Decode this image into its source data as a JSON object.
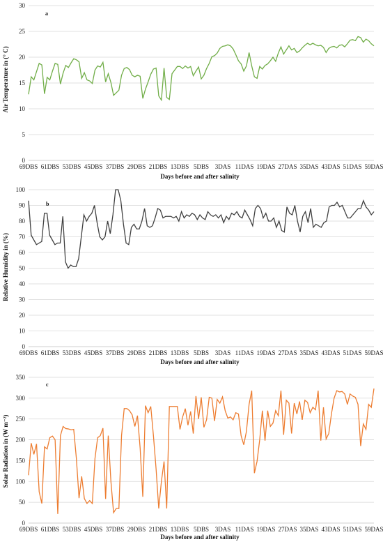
{
  "chart_data": [
    {
      "type": "line",
      "panel_label": "a",
      "ylabel": "Air Temperature in (° C)",
      "xlabel": "Days before and after salinity",
      "ylim": [
        0,
        30
      ],
      "yticks": [
        0,
        5,
        10,
        15,
        20,
        25,
        30
      ],
      "x_tick_labels": [
        "69DBS",
        "61DBS",
        "53DBS",
        "45DBS",
        "37DBS",
        "29DBS",
        "21DBS",
        "13DBS",
        "5DBS",
        "3DAS",
        "11DAS",
        "19DAS",
        "27DAS",
        "35DAS",
        "43DAS",
        "51DAS",
        "59DAS"
      ],
      "grid": true,
      "color": "#70ad47",
      "series": [
        {
          "values": [
            12.8,
            16.2,
            15.6,
            17.2,
            18.8,
            18.5,
            12.9,
            16.1,
            15.6,
            17.3,
            18.8,
            18.6,
            14.8,
            16.9,
            18.4,
            18.0,
            18.9,
            19.7,
            19.5,
            19.1,
            15.9,
            17.0,
            15.6,
            15.4,
            14.9,
            17.5,
            18.3,
            18.1,
            19.0,
            15.2,
            16.8,
            15.1,
            12.6,
            13.1,
            13.6,
            16.5,
            17.8,
            18.0,
            17.6,
            16.5,
            16.2,
            16.5,
            16.3,
            12.0,
            13.8,
            15.2,
            16.7,
            17.7,
            17.9,
            12.5,
            11.7,
            17.9,
            12.2,
            11.8,
            16.8,
            17.5,
            18.2,
            18.2,
            17.8,
            18.3,
            17.9,
            18.2,
            16.4,
            17.3,
            18.1,
            15.8,
            16.5,
            17.8,
            18.8,
            20.1,
            20.3,
            20.8,
            21.7,
            22.1,
            22.2,
            22.4,
            22.2,
            21.6,
            20.5,
            19.3,
            18.7,
            17.3,
            18.3,
            20.9,
            18.3,
            16.2,
            15.9,
            18.2,
            17.7,
            18.4,
            18.7,
            19.3,
            20.0,
            19.2,
            20.8,
            22.0,
            20.6,
            21.4,
            22.2,
            21.4,
            21.7,
            20.9,
            21.2,
            21.8,
            22.3,
            22.7,
            22.4,
            22.7,
            22.4,
            22.2,
            22.3,
            21.9,
            20.9,
            21.7,
            22.0,
            22.1,
            21.8,
            22.3,
            22.4,
            22.0,
            22.6,
            23.3,
            23.4,
            23.2,
            24.0,
            23.8,
            22.9,
            23.5,
            23.2,
            22.6,
            22.2
          ]
        }
      ]
    },
    {
      "type": "line",
      "panel_label": "b",
      "ylabel": "Relative Humidity in (%)",
      "xlabel": "Days before and after salinity",
      "ylim": [
        0,
        100
      ],
      "yticks": [
        0,
        10,
        20,
        30,
        40,
        50,
        60,
        70,
        80,
        90,
        100
      ],
      "x_tick_labels": [
        "69DBS",
        "61DBS",
        "53DBS",
        "45DBS",
        "37DBS",
        "29DBS",
        "21DBS",
        "13DBS",
        "5DBS",
        "3DAS",
        "11DAS",
        "19DAS",
        "27DAS",
        "35DAS",
        "43DAS",
        "51DAS",
        "59DAS"
      ],
      "grid": true,
      "color": "#404040",
      "series": [
        {
          "values": [
            93,
            71,
            68,
            65,
            66,
            67,
            85,
            85,
            71,
            68,
            65,
            66,
            66,
            83,
            54,
            50,
            52,
            51,
            51,
            56,
            70,
            84,
            80,
            83,
            85,
            90,
            79,
            70,
            68,
            70,
            80,
            72,
            84,
            100,
            100,
            93,
            78,
            66,
            65,
            76,
            78,
            75,
            75,
            80,
            88,
            77,
            76,
            77,
            82,
            88,
            87,
            82,
            83,
            83,
            83,
            82,
            83,
            80,
            86,
            82,
            84,
            83,
            85,
            84,
            81,
            84,
            82,
            81,
            86,
            84,
            83,
            84,
            82,
            84,
            79,
            83,
            81,
            85,
            84,
            86,
            83,
            82,
            87,
            84,
            81,
            77,
            88,
            90,
            88,
            82,
            85,
            80,
            80,
            82,
            76,
            80,
            74,
            73,
            89,
            85,
            84,
            90,
            80,
            73,
            83,
            86,
            79,
            88,
            76,
            78,
            77,
            76,
            79,
            80,
            89,
            90,
            90,
            92,
            89,
            90,
            86,
            82,
            82,
            84,
            86,
            88,
            88,
            93,
            89,
            87,
            84,
            86
          ]
        }
      ]
    },
    {
      "type": "line",
      "panel_label": "c",
      "ylabel": "Solar Radiation in (W m⁻²)",
      "xlabel": "Days before and after salinity",
      "ylim": [
        0,
        350
      ],
      "yticks": [
        0,
        50,
        100,
        150,
        200,
        250,
        300,
        350
      ],
      "x_tick_labels": [
        "69DBS",
        "61DBS",
        "53DBS",
        "45DBS",
        "37DBS",
        "29DBS",
        "21DBS",
        "13DBS",
        "5DBS",
        "3DAS",
        "11DAS",
        "19DAS",
        "27DAS",
        "35DAS",
        "43DAS",
        "51DAS",
        "59DAS"
      ],
      "grid": true,
      "color": "#ed7d31",
      "series": [
        {
          "values": [
            115,
            192,
            165,
            190,
            75,
            47,
            183,
            178,
            205,
            209,
            200,
            22,
            210,
            232,
            227,
            226,
            224,
            225,
            155,
            60,
            112,
            59,
            47,
            54,
            47,
            155,
            205,
            210,
            228,
            58,
            210,
            100,
            25,
            35,
            35,
            210,
            275,
            275,
            270,
            260,
            232,
            258,
            180,
            63,
            282,
            265,
            280,
            210,
            130,
            35,
            100,
            148,
            35,
            280,
            280,
            280,
            280,
            225,
            255,
            275,
            235,
            268,
            215,
            305,
            250,
            302,
            230,
            248,
            302,
            300,
            245,
            297,
            288,
            303,
            270,
            252,
            255,
            248,
            265,
            262,
            210,
            188,
            220,
            285,
            318,
            120,
            148,
            200,
            270,
            198,
            270,
            232,
            240,
            270,
            258,
            318,
            212,
            295,
            288,
            215,
            288,
            262,
            292,
            248,
            295,
            290,
            265,
            278,
            272,
            318,
            198,
            278,
            202,
            215,
            262,
            300,
            318,
            315,
            316,
            310,
            285,
            310,
            305,
            302,
            285,
            185,
            238,
            225,
            285,
            278,
            323
          ]
        }
      ]
    }
  ]
}
